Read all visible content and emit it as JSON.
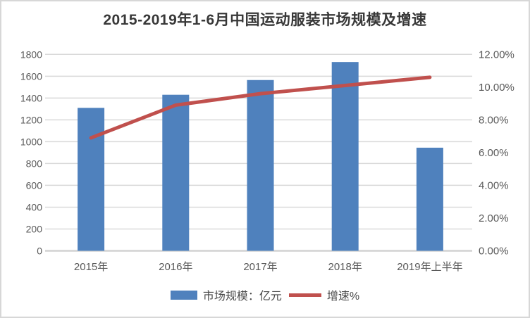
{
  "title": "2015-2019年1-6月中国运动服装市场规模及增速",
  "chart_data": {
    "type": "bar+line combo",
    "categories": [
      "2015年",
      "2016年",
      "2017年",
      "2018年",
      "2019年上半年"
    ],
    "series": [
      {
        "name": "市场规模：亿元",
        "type": "bar",
        "axis": "left",
        "color": "#4f81bd",
        "values": [
          1310,
          1430,
          1565,
          1730,
          945
        ]
      },
      {
        "name": "增速%",
        "type": "line",
        "axis": "right",
        "color": "#c0504d",
        "values": [
          6.9,
          8.9,
          9.6,
          10.1,
          10.6
        ]
      }
    ],
    "left_axis": {
      "min": 0,
      "max": 1800,
      "step": 200,
      "tick_labels": [
        "0",
        "200",
        "400",
        "600",
        "800",
        "1000",
        "1200",
        "1400",
        "1600",
        "1800"
      ]
    },
    "right_axis": {
      "min": 0,
      "max": 12,
      "step": 2,
      "tick_labels": [
        "0.00%",
        "2.00%",
        "4.00%",
        "6.00%",
        "8.00%",
        "10.00%",
        "12.00%"
      ]
    },
    "grid": true,
    "legend_position": "bottom",
    "colors": {
      "gridline": "#d9d9d9",
      "axis_line": "#d2d2d2",
      "tick_text": "#595959",
      "title_text": "#383838"
    }
  }
}
